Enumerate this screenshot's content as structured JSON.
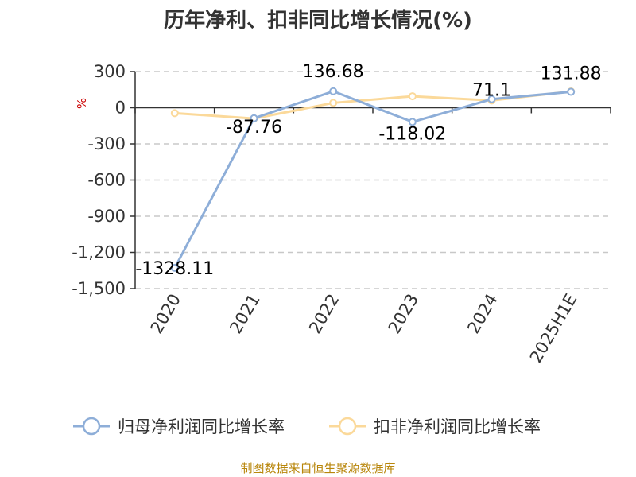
{
  "chart_data": {
    "type": "line",
    "title": "历年净利、扣非同比增长情况(%)",
    "ylabel": "%",
    "categories": [
      "2020",
      "2021",
      "2022",
      "2023",
      "2024",
      "2025H1E"
    ],
    "ylim": [
      -1500,
      300
    ],
    "yticks": [
      300,
      0,
      -300,
      -600,
      -900,
      -1200,
      -1500
    ],
    "ytick_labels": [
      "300",
      "0",
      "-300",
      "-600",
      "-900",
      "-1,200",
      "-1,500"
    ],
    "grid": true,
    "legend_position": "bottom",
    "series": [
      {
        "name": "归母净利润同比增长率",
        "color": "#8eaed8",
        "values": [
          -1328.11,
          -87.76,
          136.68,
          -118.02,
          71.1,
          131.88
        ],
        "labels": [
          "-1328.11",
          "-87.76",
          "136.68",
          "-118.02",
          "71.1",
          "131.88"
        ]
      },
      {
        "name": "扣非净利润同比增长率",
        "color": "#fbd99a",
        "values": [
          -45,
          -90,
          40,
          95,
          60,
          135
        ]
      }
    ]
  },
  "footer": {
    "source": "制图数据来自恒生聚源数据库"
  }
}
